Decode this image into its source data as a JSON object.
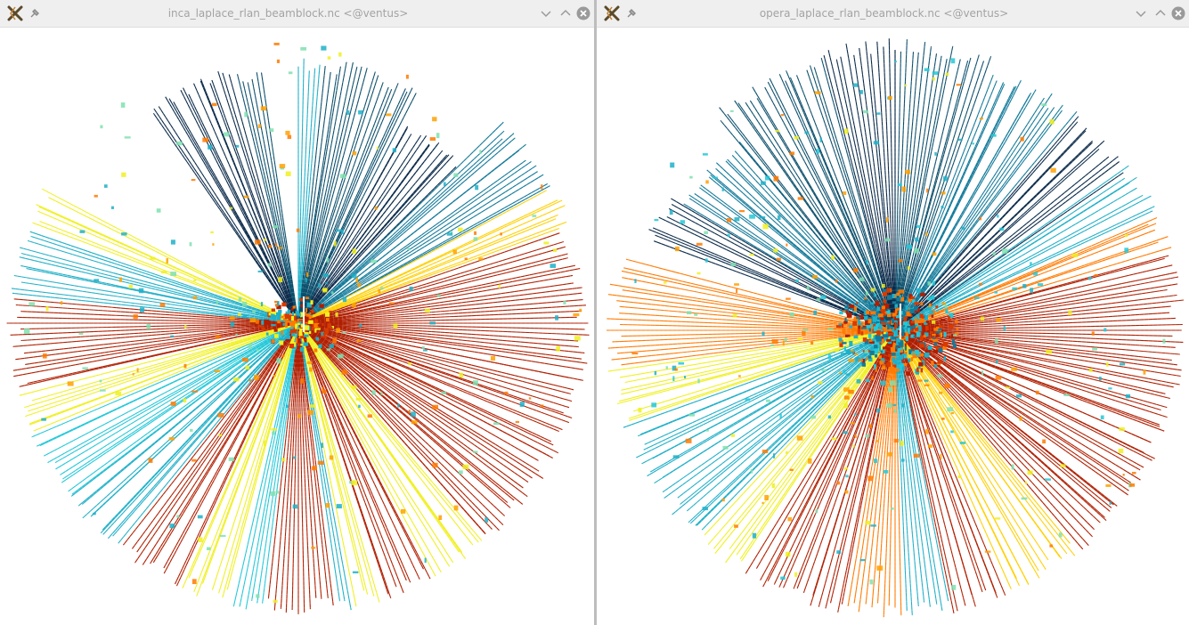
{
  "windows": [
    {
      "title": "inca_laplace_rlan_beamblock.nc <@ventus>",
      "icons": [
        "application-icon",
        "pin-icon",
        "minimize-icon",
        "maximize-icon",
        "close-icon"
      ]
    },
    {
      "title": "opera_laplace_rlan_beamblock.nc <@ventus>",
      "icons": [
        "application-icon",
        "pin-icon",
        "minimize-icon",
        "maximize-icon",
        "close-icon"
      ]
    }
  ],
  "colormap": [
    "#0a2a4a",
    "#0b4f6c",
    "#137a9a",
    "#1fb0c8",
    "#22c8d8",
    "#7fe0b0",
    "#f0f020",
    "#ffd000",
    "#ffa000",
    "#ff7a00",
    "#d83a00",
    "#b01e00"
  ],
  "background_color": "#ffffff"
}
